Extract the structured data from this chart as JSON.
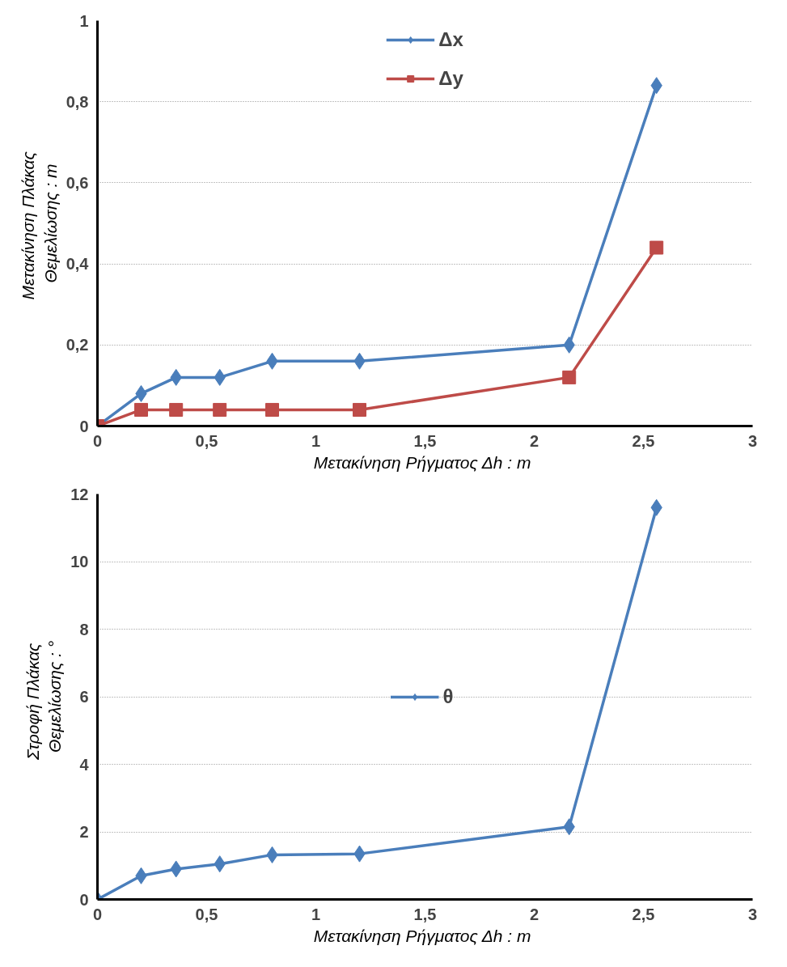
{
  "chart_data": [
    {
      "type": "line",
      "xlabel": "Μετακίνηση Ρήγματος  Δh : m",
      "ylabel": "Μετακίνηση  Πλάκας\nΘεμελίωσης : m",
      "x": [
        0,
        0.2,
        0.36,
        0.56,
        0.8,
        1.2,
        2.16,
        2.56
      ],
      "series": [
        {
          "name": "Δx",
          "color": "#4a7ebb",
          "marker": "diamond",
          "values": [
            0,
            0.08,
            0.12,
            0.12,
            0.16,
            0.16,
            0.2,
            0.84
          ]
        },
        {
          "name": "Δy",
          "color": "#be4b48",
          "marker": "square",
          "values": [
            0,
            0.04,
            0.04,
            0.04,
            0.04,
            0.04,
            0.12,
            0.44
          ]
        }
      ],
      "xlim": [
        0,
        3
      ],
      "xticks": [
        0,
        {
          "value": 0.5,
          "label": "0,5"
        },
        1,
        {
          "value": 1.5,
          "label": "1,5"
        },
        2,
        {
          "value": 2.5,
          "label": "2,5"
        },
        3
      ],
      "ylim": [
        0,
        1
      ],
      "yticks": [
        0,
        {
          "value": 0.2,
          "label": "0,2"
        },
        {
          "value": 0.4,
          "label": "0,4"
        },
        {
          "value": 0.6,
          "label": "0,6"
        },
        {
          "value": 0.8,
          "label": "0,8"
        },
        1
      ],
      "grid": "y",
      "legend": "top",
      "line_style": "solid"
    },
    {
      "type": "line",
      "xlabel": "Μετακίνηση Ρήγματος  Δh : m",
      "ylabel": "Στροφή   Πλάκας\nΘεμελίωσης : °",
      "x": [
        0,
        0.2,
        0.36,
        0.56,
        0.8,
        1.2,
        2.16,
        2.56
      ],
      "series": [
        {
          "name": "θ",
          "color": "#4a7ebb",
          "marker": "diamond",
          "values": [
            0,
            0.7,
            0.9,
            1.05,
            1.32,
            1.35,
            2.15,
            11.6
          ]
        }
      ],
      "xlim": [
        0,
        3
      ],
      "xticks": [
        0,
        {
          "value": 0.5,
          "label": "0,5"
        },
        1,
        {
          "value": 1.5,
          "label": "1,5"
        },
        2,
        {
          "value": 2.5,
          "label": "2,5"
        },
        3
      ],
      "ylim": [
        0,
        12
      ],
      "yticks": [
        0,
        2,
        4,
        6,
        8,
        10,
        12
      ],
      "grid": "y",
      "legend": "center",
      "line_style": "solid"
    }
  ]
}
